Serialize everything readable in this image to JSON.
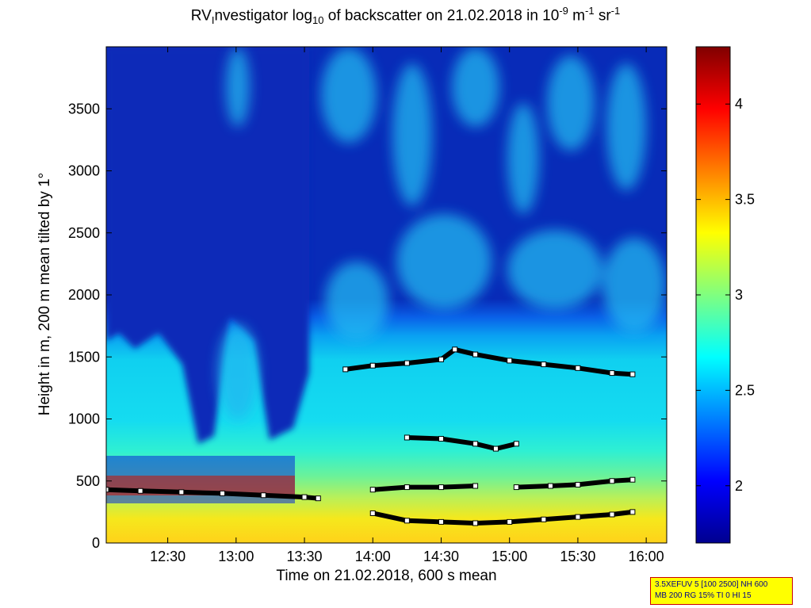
{
  "chart_data": {
    "type": "heatmap",
    "title_parts": {
      "prefix": "RV",
      "sub1": "I",
      "mid1": "nvestigator log",
      "sub2": "10",
      "mid2": " of backscatter on 21.02.2018 in 10",
      "sup1": "-9",
      "mid3": " m",
      "sup2": "-1",
      "mid4": " sr",
      "sup3": "-1"
    },
    "xlabel": "Time on 21.02.2018, 600 s mean",
    "ylabel": "Height in m, 200 m mean tilted by 1°",
    "x_ticks": [
      "12:30",
      "13:00",
      "13:30",
      "14:00",
      "14:30",
      "15:00",
      "15:30",
      "16:00"
    ],
    "x_tick_hours": [
      12.5,
      13.0,
      13.5,
      14.0,
      14.5,
      15.0,
      15.5,
      16.0
    ],
    "xlim_hours": [
      12.05,
      16.15
    ],
    "y_ticks": [
      0,
      500,
      1000,
      1500,
      2000,
      2500,
      3000,
      3500
    ],
    "ylim": [
      0,
      4000
    ],
    "colorbar": {
      "ticks": [
        "2",
        "2.5",
        "3",
        "3.5",
        "4"
      ],
      "tick_values": [
        2.0,
        2.5,
        3.0,
        3.5,
        4.0
      ],
      "range": [
        1.7,
        4.3
      ],
      "colormap": "jet"
    },
    "layers": [
      {
        "name": "lowest layer",
        "x": [
          14.0,
          14.25,
          14.5,
          14.75,
          15.0,
          15.25,
          15.5,
          15.75,
          15.9
        ],
        "y": [
          240,
          180,
          170,
          160,
          170,
          190,
          210,
          230,
          250
        ]
      },
      {
        "name": "layer ~400 m",
        "x": [
          12.05,
          12.3,
          12.6,
          12.9,
          13.2,
          13.5,
          13.6
        ],
        "y": [
          430,
          420,
          410,
          400,
          385,
          370,
          360
        ]
      },
      {
        "name": "layer ~450 m",
        "x": [
          14.0,
          14.25,
          14.5,
          14.75
        ],
        "y": [
          430,
          450,
          450,
          460
        ]
      },
      {
        "name": "layer ~450 m late",
        "x": [
          15.05,
          15.3,
          15.5,
          15.75,
          15.9
        ],
        "y": [
          450,
          460,
          470,
          500,
          510
        ]
      },
      {
        "name": "layer ~800 m",
        "x": [
          14.25,
          14.5,
          14.75,
          14.9,
          15.05
        ],
        "y": [
          850,
          840,
          800,
          760,
          800
        ]
      },
      {
        "name": "upper layer",
        "x": [
          13.8,
          14.0,
          14.25,
          14.5,
          14.6,
          14.75,
          15.0,
          15.25,
          15.5,
          15.75,
          15.9
        ],
        "y": [
          1400,
          1430,
          1450,
          1480,
          1560,
          1520,
          1470,
          1440,
          1410,
          1370,
          1360
        ]
      }
    ],
    "grid": false
  },
  "info_box": {
    "line1": "3.5XEFUV 5 [100 2500] NH 600",
    "line2": "MB 200 RG 15% TI 0 HI 15"
  },
  "colors": {
    "background": "#ffffff",
    "info_box_bg": "#ffff00",
    "info_box_border": "#cc0000",
    "info_box_text": "#00008b"
  }
}
